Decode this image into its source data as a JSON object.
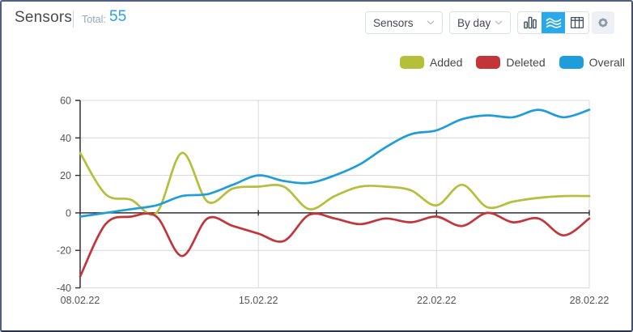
{
  "header": {
    "title": "Sensors",
    "total_label": "Total:",
    "total_value": "55"
  },
  "toolbar": {
    "entity_dropdown": {
      "value": "Sensors"
    },
    "period_dropdown": {
      "value": "By day"
    },
    "chart_type_options": [
      "bar",
      "line",
      "table"
    ],
    "active_chart_type": "line",
    "icons": [
      "bar-chart-icon",
      "line-chart-icon",
      "table-icon",
      "gear-icon",
      "chevron-down-icon"
    ]
  },
  "colors": {
    "accent": "#29a9ea",
    "total_value": "#2aa0e6",
    "grid_line": "#d8d8d8",
    "axis_line": "#303030",
    "tick_label": "#555555",
    "border": "#50607e"
  },
  "chart_data": {
    "type": "line",
    "title": "",
    "xlabel": "",
    "ylabel": "",
    "x_labels": [
      "08.02.22",
      "15.02.22",
      "22.02.22",
      "28.02.22"
    ],
    "x_label_days": [
      0,
      7,
      14,
      20
    ],
    "x_gridline_days": [
      7,
      14,
      20
    ],
    "days": 21,
    "ylim": [
      -40,
      60
    ],
    "yticks": [
      60,
      40,
      20,
      0,
      -20,
      -40
    ],
    "grid": true,
    "smooth": true,
    "legend_position": "top-right",
    "series": [
      {
        "name": "Added",
        "color": "#b4bf3a",
        "values": [
          32,
          10,
          7,
          0,
          32,
          6,
          13,
          14,
          14,
          2,
          9,
          14,
          14,
          12,
          4,
          15,
          3,
          6,
          8,
          9,
          9
        ]
      },
      {
        "name": "Deleted",
        "color": "#c4353a",
        "values": [
          -34,
          -6,
          -2,
          -2,
          -23,
          -3,
          -7,
          -11,
          -15,
          -1,
          -3,
          -6,
          -3,
          -5,
          -2,
          -7,
          0,
          -5,
          -3,
          -12,
          -3
        ]
      },
      {
        "name": "Overall",
        "color": "#1f9ddb",
        "values": [
          -2,
          0,
          2,
          4,
          9,
          10,
          15,
          20,
          17,
          16,
          20,
          26,
          35,
          42,
          44,
          50,
          52,
          51,
          55,
          51,
          55
        ]
      }
    ]
  }
}
